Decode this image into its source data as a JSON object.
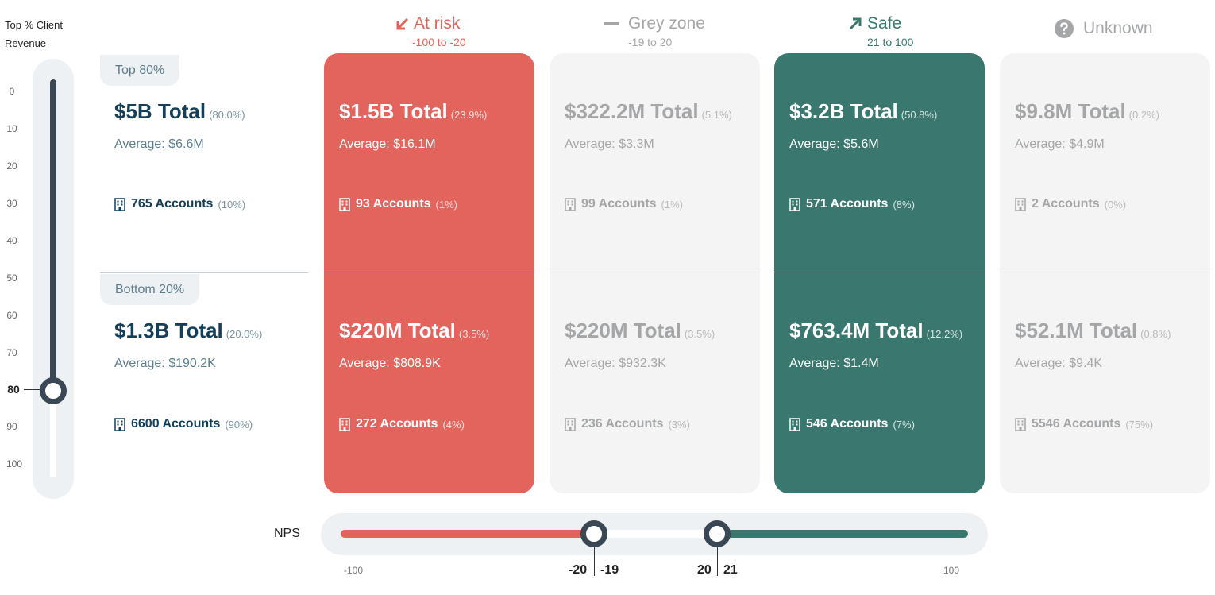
{
  "vertical_slider": {
    "label_line1": "Top % Client",
    "label_line2": "Revenue",
    "ticks": [
      "0",
      "10",
      "20",
      "30",
      "40",
      "50",
      "60",
      "70",
      "80",
      "90",
      "100"
    ],
    "value": "80",
    "value_fraction": 0.8
  },
  "segments": {
    "top": {
      "label": "Top 80%",
      "total": "$5B Total",
      "total_pct": "(80.0%)",
      "average": "Average: $6.6M",
      "accounts": "765 Accounts",
      "accounts_pct": "(10%)"
    },
    "bottom": {
      "label": "Bottom 20%",
      "total": "$1.3B Total",
      "total_pct": "(20.0%)",
      "average": "Average: $190.2K",
      "accounts": "6600 Accounts",
      "accounts_pct": "(90%)"
    }
  },
  "columns": [
    {
      "title": "At risk",
      "range": "-100 to -20",
      "icon": "arrow-down-left-icon",
      "color": "#e2645c",
      "top": {
        "total": "$1.5B Total",
        "total_pct": "(23.9%)",
        "average": "Average: $16.1M",
        "accounts": "93 Accounts",
        "accounts_pct": "(1%)"
      },
      "bottom": {
        "total": "$220M Total",
        "total_pct": "(3.5%)",
        "average": "Average: $808.9K",
        "accounts": "272 Accounts",
        "accounts_pct": "(4%)"
      }
    },
    {
      "title": "Grey zone",
      "range": "-19 to 20",
      "icon": "dash-icon",
      "color": "#a4a6a8",
      "top": {
        "total": "$322.2M Total",
        "total_pct": "(5.1%)",
        "average": "Average: $3.3M",
        "accounts": "99 Accounts",
        "accounts_pct": "(1%)"
      },
      "bottom": {
        "total": "$220M Total",
        "total_pct": "(3.5%)",
        "average": "Average: $932.3K",
        "accounts": "236 Accounts",
        "accounts_pct": "(3%)"
      }
    },
    {
      "title": "Safe",
      "range": "21 to 100",
      "icon": "arrow-up-right-icon",
      "color": "#3a786f",
      "top": {
        "total": "$3.2B Total",
        "total_pct": "(50.8%)",
        "average": "Average: $5.6M",
        "accounts": "571 Accounts",
        "accounts_pct": "(8%)"
      },
      "bottom": {
        "total": "$763.4M Total",
        "total_pct": "(12.2%)",
        "average": "Average: $1.4M",
        "accounts": "546 Accounts",
        "accounts_pct": "(7%)"
      }
    },
    {
      "title": "Unknown",
      "range": "",
      "icon": "question-circle-icon",
      "color": "#a4a6a8",
      "top": {
        "total": "$9.8M Total",
        "total_pct": "(0.2%)",
        "average": "Average: $4.9M",
        "accounts": "2 Accounts",
        "accounts_pct": "(0%)"
      },
      "bottom": {
        "total": "$52.1M Total",
        "total_pct": "(0.8%)",
        "average": "Average: $9.4K",
        "accounts": "5546 Accounts",
        "accounts_pct": "(75%)"
      }
    }
  ],
  "nps_slider": {
    "label": "NPS",
    "min": "-100",
    "max": "100",
    "low_left": "-20",
    "low_right": "-19",
    "high_left": "20",
    "high_right": "21"
  },
  "icons": {
    "accounts": "building-icon"
  }
}
